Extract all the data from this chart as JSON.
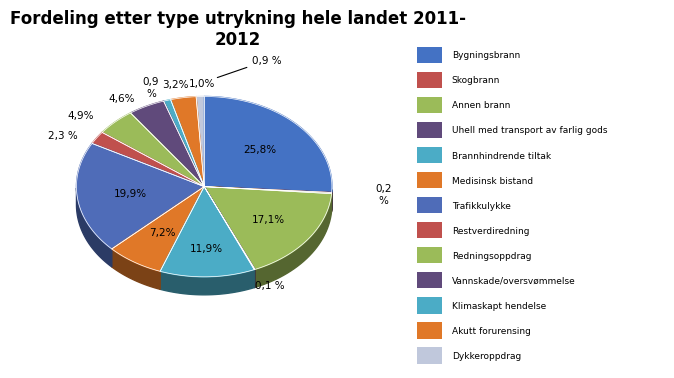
{
  "title": "Fordeling etter type utrykning hele landet 2011-\n2012",
  "labels": [
    "Bygningsbrann",
    "Skogbrann",
    "Annen brann",
    "Uhell med transport av farlig gods",
    "Brannhindrende tiltak",
    "Medisinsk bistand",
    "Trafikkulykke",
    "Restverdiredning",
    "Redningsoppdrag",
    "Vannskade/oversvømmelse",
    "Klimaskapt hendelse",
    "Akutt forurensing",
    "Dykkeroppdrag"
  ],
  "values": [
    25.8,
    0.2,
    17.1,
    0.1,
    11.9,
    7.2,
    19.9,
    2.3,
    4.9,
    4.6,
    0.9,
    3.2,
    1.0
  ],
  "colors": [
    "#4472C4",
    "#7F3030",
    "#9BBB59",
    "#604A7B",
    "#4BACC6",
    "#E07020",
    "#4472C4",
    "#C0504D",
    "#9BBB59",
    "#604A7B",
    "#4BACC6",
    "#E07020",
    "#C0C0D0"
  ],
  "legend_colors": [
    "#4472C4",
    "#C0504D",
    "#9BBB59",
    "#604A7B",
    "#4BACC6",
    "#E07020",
    "#4472C4",
    "#C0504D",
    "#9BBB59",
    "#604A7B",
    "#4BACC6",
    "#E07020",
    "#C0C0D0"
  ],
  "startangle": 90,
  "title_fontsize": 13
}
